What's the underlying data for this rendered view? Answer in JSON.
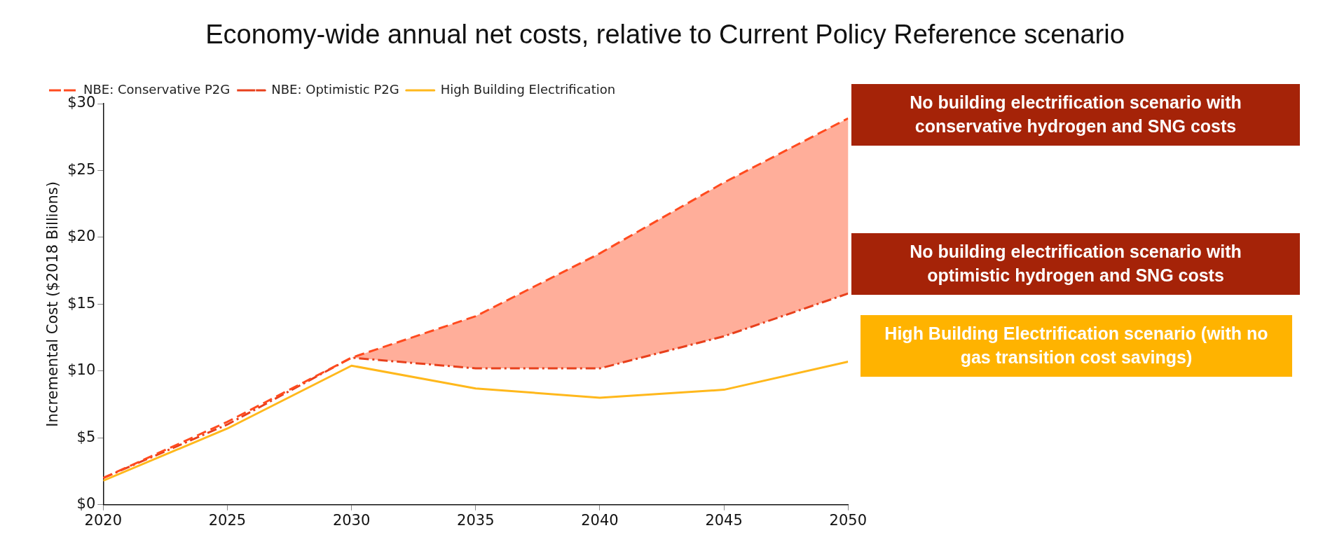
{
  "chart_data": {
    "type": "line",
    "title": "Economy-wide annual net costs, relative to Current Policy Reference scenario",
    "ylabel": "Incremental Cost ($2018 Billions)",
    "x": [
      2020,
      2025,
      2030,
      2035,
      2040,
      2045,
      2050
    ],
    "xlim": [
      2020,
      2050
    ],
    "xticks": [
      2020,
      2025,
      2030,
      2035,
      2040,
      2045,
      2050
    ],
    "ylim": [
      0,
      30
    ],
    "yticks": [
      {
        "value": 0,
        "label": "$0"
      },
      {
        "value": 5,
        "label": "$5"
      },
      {
        "value": 10,
        "label": "$10"
      },
      {
        "value": 15,
        "label": "$15"
      },
      {
        "value": 20,
        "label": "$20"
      },
      {
        "value": 25,
        "label": "$25"
      },
      {
        "value": 30,
        "label": "$30"
      }
    ],
    "series": [
      {
        "name": "NBE: Conservative P2G",
        "color": "#ff4b1f",
        "line_style": "dashed",
        "values": [
          2.0,
          6.2,
          11.0,
          14.1,
          18.8,
          24.1,
          28.9
        ],
        "lower": [
          null,
          null,
          11.0,
          10.2,
          10.2,
          12.6,
          15.8
        ],
        "upper": [
          null,
          null,
          11.0,
          14.1,
          18.8,
          24.1,
          28.9
        ]
      },
      {
        "name": "NBE: Optimistic P2G",
        "color": "#e8401c",
        "line_style": "dotted",
        "values": [
          2.0,
          6.0,
          11.0,
          10.2,
          10.2,
          12.6,
          15.8
        ]
      },
      {
        "name": "High Building Electrification",
        "color": "#ffb81c",
        "line_style": "solid",
        "values": [
          1.8,
          5.7,
          10.4,
          8.7,
          8.0,
          8.6,
          10.7
        ]
      }
    ],
    "legend": "top left",
    "grid": false,
    "marker": "none",
    "annotations": [
      "No building electrification scenario with conservative hydrogen and SNG costs",
      "No building electrification scenario with optimistic hydrogen and SNG costs",
      "High Building Electrification scenario (with no gas transition cost savings)"
    ]
  }
}
